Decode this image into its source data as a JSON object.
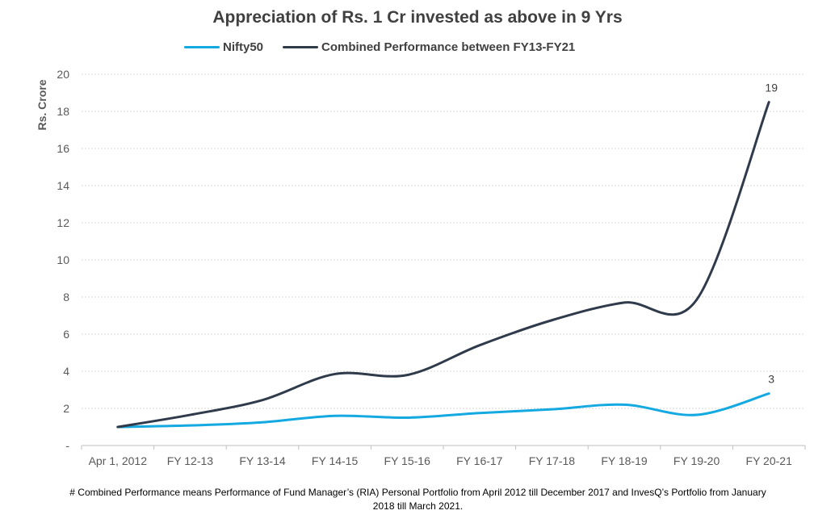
{
  "chart_data": {
    "type": "line",
    "title": "Appreciation of Rs. 1 Cr invested as above in 9 Yrs",
    "ylabel": "Rs. Crore",
    "xlabel": "",
    "ylim": [
      0,
      20
    ],
    "yticks": [
      0,
      2,
      4,
      6,
      8,
      10,
      12,
      14,
      16,
      18,
      20
    ],
    "ytick_labels": [
      "-",
      "2",
      "4",
      "6",
      "8",
      "10",
      "12",
      "14",
      "16",
      "18",
      "20"
    ],
    "grid": true,
    "legend_position": "top",
    "categories": [
      "Apr 1, 2012",
      "FY 12-13",
      "FY 13-14",
      "FY 14-15",
      "FY 15-16",
      "FY 16-17",
      "FY 17-18",
      "FY 18-19",
      "FY 19-20",
      "FY 20-21"
    ],
    "series": [
      {
        "name": "Nifty50",
        "color": "#14A9E1",
        "values": [
          1.0,
          1.08,
          1.25,
          1.6,
          1.5,
          1.75,
          1.95,
          2.2,
          1.65,
          2.8
        ],
        "end_label": "3"
      },
      {
        "name": "Combined Performance between FY13-FY21",
        "color": "#2F3A4B",
        "values": [
          1.0,
          1.65,
          2.45,
          3.85,
          3.8,
          5.4,
          6.75,
          7.7,
          7.85,
          18.5
        ],
        "end_label": "19"
      }
    ]
  },
  "footnote": {
    "line1": "# Combined Performance means Performance of Fund Manager’s (RIA) Personal Portfolio from April 2012 till December 2017 and InvesQ’s Portfolio from January",
    "line2": "2018 till March 2021."
  }
}
